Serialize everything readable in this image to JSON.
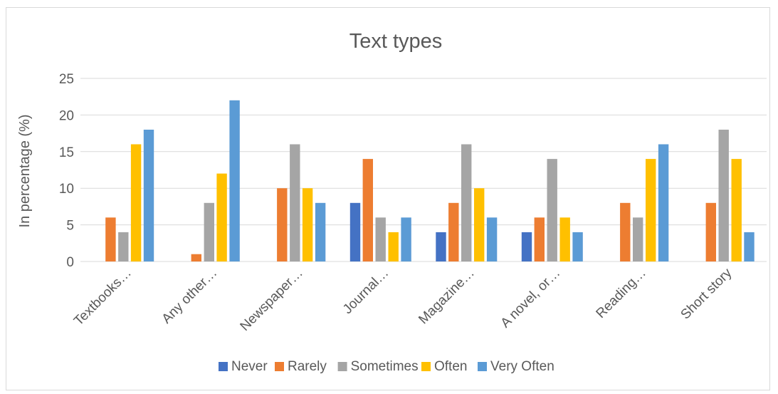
{
  "chart_data": {
    "type": "bar",
    "title": "Text types",
    "xlabel": "",
    "ylabel": "In percentage (%)",
    "ylim": [
      0,
      25
    ],
    "yticks": [
      0,
      5,
      10,
      15,
      20,
      25
    ],
    "grid": true,
    "legend_position": "bottom",
    "categories": [
      "Textbooks…",
      "Any other…",
      "Newspaper…",
      "Journal…",
      "Magazine…",
      "A novel, or…",
      "Reading…",
      "Short story"
    ],
    "series": [
      {
        "name": "Never",
        "color": "#4472C4",
        "values": [
          0,
          0,
          0,
          8,
          4,
          4,
          0,
          0
        ]
      },
      {
        "name": "Rarely",
        "color": "#ED7D31",
        "values": [
          6,
          1,
          10,
          14,
          8,
          6,
          8,
          8
        ]
      },
      {
        "name": "Sometimes",
        "color": "#A5A5A5",
        "values": [
          4,
          8,
          16,
          6,
          16,
          14,
          6,
          18
        ]
      },
      {
        "name": "Often",
        "color": "#FFC000",
        "values": [
          16,
          12,
          10,
          4,
          10,
          6,
          14,
          14
        ]
      },
      {
        "name": "Very Often",
        "color": "#5B9BD5",
        "values": [
          18,
          22,
          8,
          6,
          6,
          4,
          16,
          4
        ]
      }
    ]
  }
}
